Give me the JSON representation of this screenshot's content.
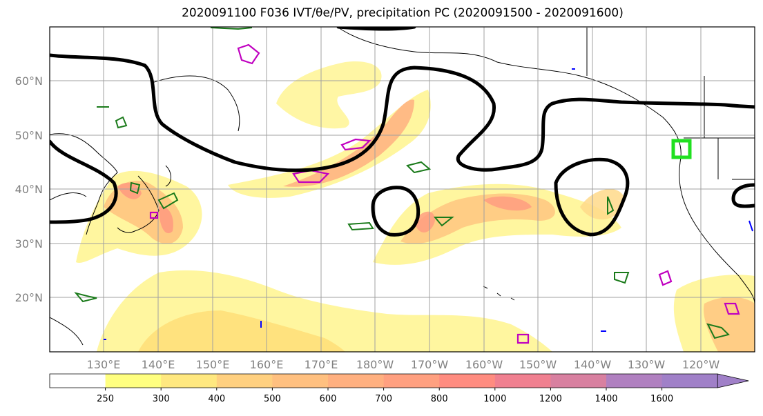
{
  "title": "2020091100 F036 IVT/θe/PV, precipitation PC (2020091500 - 2020091600)",
  "lat_labels": [
    "60°N",
    "50°N",
    "40°N",
    "30°N",
    "20°N"
  ],
  "lon_labels": [
    "130°E",
    "140°E",
    "150°E",
    "160°E",
    "170°E",
    "180°W",
    "170°W",
    "160°W",
    "150°W",
    "140°W",
    "130°W",
    "120°W"
  ],
  "colorbar": {
    "tick_labels": [
      "250",
      "300",
      "400",
      "500",
      "600",
      "700",
      "800",
      "1000",
      "1200",
      "1400",
      "1600"
    ],
    "colors": [
      "#ffffff",
      "#ffff80",
      "#ffe880",
      "#ffd080",
      "#ffc080",
      "#ffb080",
      "#ffa080",
      "#ff8c80",
      "#f08090",
      "#d880a0",
      "#b080c0",
      "#a080c8"
    ]
  }
}
